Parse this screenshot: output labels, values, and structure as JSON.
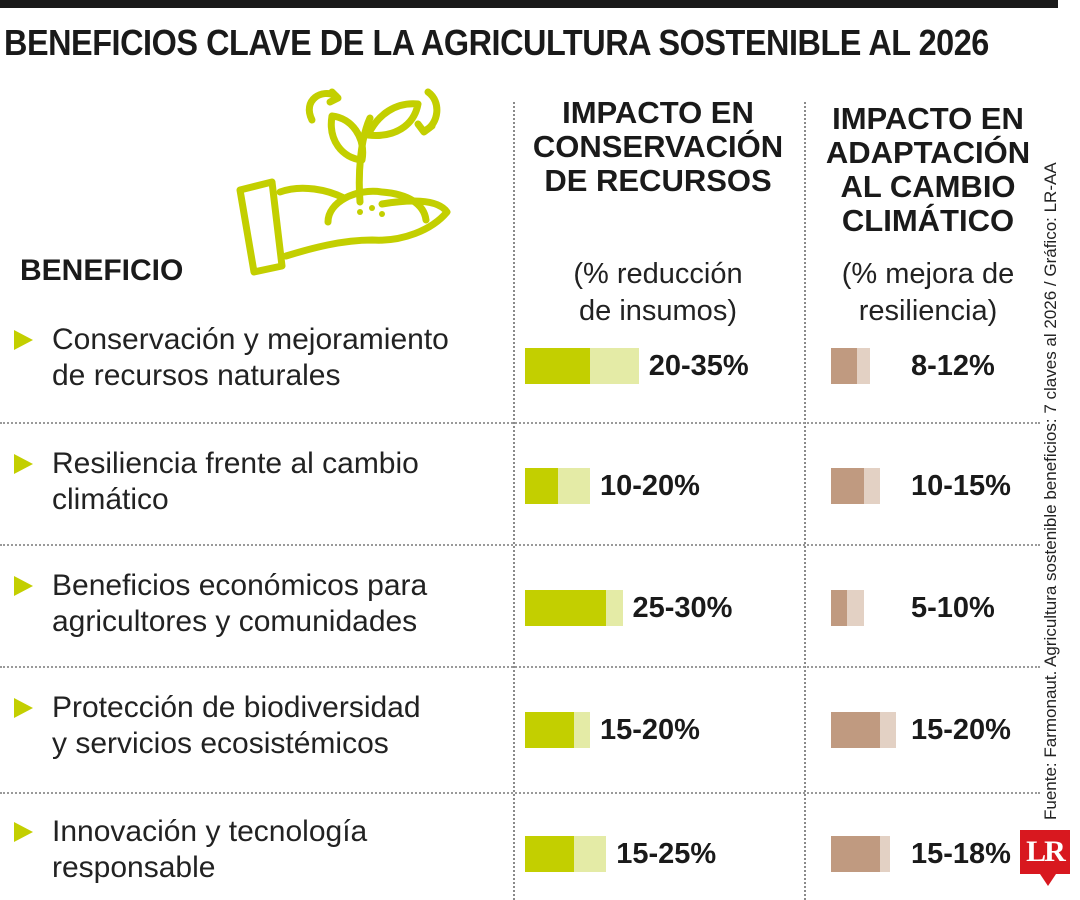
{
  "title": "BENEFICIOS CLAVE DE LA AGRICULTURA SOSTENIBLE AL 2026",
  "colors": {
    "green_strong": "#c3cf00",
    "green_light": "#e4eba6",
    "brown_strong": "#c09a80",
    "brown_light": "#e3d1c4",
    "arrow": "#c3cf00",
    "logo": "#d8181f"
  },
  "benefit_header": "BENEFICIO",
  "col1": {
    "title_lines": [
      "IMPACTO EN",
      "CONSERVACIÓN",
      "DE RECURSOS"
    ],
    "subtitle_lines": [
      "(% reducción",
      "de insumos)"
    ]
  },
  "col2": {
    "title_lines": [
      "IMPACTO EN",
      "ADAPTACIÓN",
      "AL CAMBIO",
      "CLIMÁTICO"
    ],
    "subtitle_lines": [
      "(% mejora de",
      "resiliencia)"
    ]
  },
  "source": "Fuente: Farmonaut. Agricultura sostenible beneficios: 7 claves al 2026 / Gráfico: LR-AA",
  "logo_text": "LR",
  "chart_data": {
    "type": "bar",
    "categories": [
      "Conservación y mejoramiento de recursos naturales",
      "Resiliencia frente al cambio climático",
      "Beneficios económicos para agricultores y comunidades",
      "Protección de biodiversidad y servicios ecosistémicos",
      "Innovación y tecnología responsable"
    ],
    "category_lines": [
      [
        "Conservación y mejoramiento",
        "de recursos naturales"
      ],
      [
        "Resiliencia frente al cambio",
        "climático"
      ],
      [
        "Beneficios económicos para",
        "agricultores y comunidades"
      ],
      [
        "Protección de biodiversidad",
        "y servicios ecosistémicos"
      ],
      [
        "Innovación y tecnología",
        "responsable"
      ]
    ],
    "series": [
      {
        "name": "IMPACTO EN CONSERVACIÓN DE RECURSOS",
        "ranges": [
          [
            20,
            35
          ],
          [
            10,
            20
          ],
          [
            25,
            30
          ],
          [
            15,
            20
          ],
          [
            15,
            25
          ]
        ],
        "labels": [
          "20-35%",
          "10-20%",
          "25-30%",
          "15-20%",
          "15-25%"
        ]
      },
      {
        "name": "IMPACTO EN ADAPTACIÓN AL CAMBIO CLIMÁTICO",
        "ranges": [
          [
            8,
            12
          ],
          [
            10,
            15
          ],
          [
            5,
            10
          ],
          [
            15,
            20
          ],
          [
            15,
            18
          ]
        ],
        "labels": [
          "8-12%",
          "10-15%",
          "5-10%",
          "15-20%",
          "15-18%"
        ]
      }
    ]
  }
}
